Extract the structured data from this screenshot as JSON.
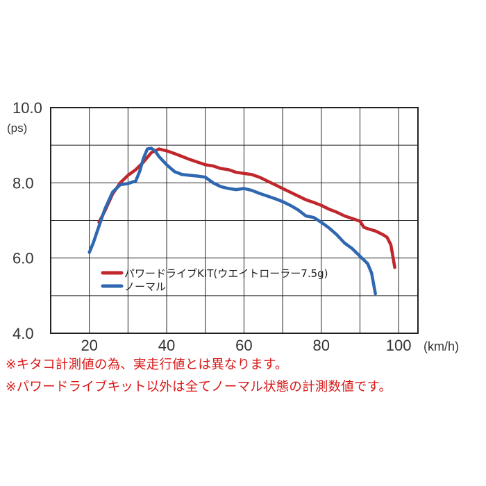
{
  "chart_data": {
    "type": "line",
    "xlabel": "(km/h)",
    "ylabel": "(ps)",
    "xlim": [
      10,
      105
    ],
    "ylim": [
      4.0,
      10.0
    ],
    "x_ticks": [
      20,
      40,
      60,
      80,
      100
    ],
    "x_tick_labels": [
      "20",
      "40",
      "60",
      "80",
      "100"
    ],
    "y_ticks": [
      4,
      6,
      8,
      10
    ],
    "y_tick_labels": [
      "4.0",
      "6.0",
      "8.0",
      "10.0"
    ],
    "grid": true,
    "legend_position": "inside-bottom-left",
    "series": [
      {
        "name": "パワードライブKIT(ウエイトローラー7.5g)",
        "color": "#c0272d",
        "x": [
          22.5,
          24,
          26,
          28,
          30,
          32,
          34,
          36,
          38,
          40,
          42,
          44,
          46,
          48,
          50,
          52,
          54,
          56,
          58,
          60,
          62,
          64,
          66,
          68,
          70,
          72,
          74,
          76,
          78,
          80,
          82,
          84,
          86,
          88,
          90,
          91,
          92,
          94,
          96,
          97,
          98,
          99
        ],
        "values": [
          6.95,
          7.25,
          7.7,
          8.0,
          8.2,
          8.35,
          8.55,
          8.8,
          8.9,
          8.85,
          8.78,
          8.7,
          8.62,
          8.55,
          8.48,
          8.45,
          8.38,
          8.35,
          8.28,
          8.25,
          8.22,
          8.15,
          8.05,
          7.95,
          7.85,
          7.75,
          7.65,
          7.55,
          7.48,
          7.4,
          7.3,
          7.22,
          7.12,
          7.05,
          6.98,
          6.82,
          6.78,
          6.72,
          6.62,
          6.55,
          6.35,
          5.75
        ]
      },
      {
        "name": "ノーマル",
        "color": "#2f67b0",
        "x": [
          20,
          21,
          22,
          24,
          26,
          28,
          30,
          32,
          33,
          34,
          35,
          36,
          37,
          38,
          40,
          42,
          44,
          46,
          48,
          50,
          52,
          54,
          56,
          58,
          60,
          62,
          64,
          66,
          68,
          70,
          72,
          74,
          76,
          78,
          80,
          82,
          84,
          86,
          88,
          90,
          92,
          93,
          94
        ],
        "values": [
          6.15,
          6.4,
          6.7,
          7.3,
          7.75,
          7.95,
          7.98,
          8.05,
          8.3,
          8.65,
          8.9,
          8.92,
          8.85,
          8.7,
          8.48,
          8.3,
          8.22,
          8.2,
          8.18,
          8.15,
          8.0,
          7.9,
          7.85,
          7.82,
          7.85,
          7.8,
          7.72,
          7.65,
          7.58,
          7.5,
          7.4,
          7.28,
          7.12,
          7.08,
          6.95,
          6.8,
          6.62,
          6.4,
          6.25,
          6.05,
          5.85,
          5.6,
          5.05
        ]
      }
    ]
  },
  "notes": [
    "※キタコ計測値の為、実走行値とは異なります。",
    "※パワードライブキット以外は全てノーマル状態の計測数値です。"
  ]
}
